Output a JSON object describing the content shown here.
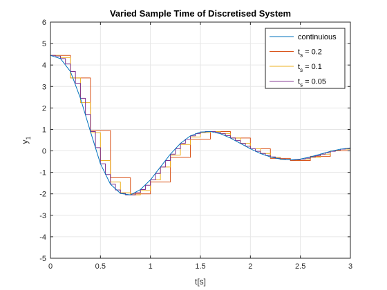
{
  "chart_data": {
    "type": "line",
    "title": "Varied Sample Time of Discretised System",
    "xlabel": "t[s]",
    "ylabel_main": "y",
    "ylabel_sub": "1",
    "xlim": [
      0,
      3
    ],
    "ylim": [
      -5,
      6
    ],
    "xticks": [
      0,
      0.5,
      1,
      1.5,
      2,
      2.5,
      3
    ],
    "xtick_labels": [
      "0",
      "0.5",
      "1",
      "1.5",
      "2",
      "2.5",
      "3"
    ],
    "yticks": [
      -5,
      -4,
      -3,
      -2,
      -1,
      0,
      1,
      2,
      3,
      4,
      5,
      6
    ],
    "ytick_labels": [
      "-5",
      "-4",
      "-3",
      "-2",
      "-1",
      "0",
      "1",
      "2",
      "3",
      "4",
      "5",
      "6"
    ],
    "grid": true,
    "legend_position": "top-right",
    "series": [
      {
        "name": "continuious",
        "style": "continuous",
        "color": "#0072BD",
        "x": [
          0,
          0.1,
          0.2,
          0.3,
          0.4,
          0.5,
          0.6,
          0.7,
          0.8,
          0.9,
          1.0,
          1.1,
          1.2,
          1.3,
          1.4,
          1.5,
          1.6,
          1.7,
          1.8,
          1.9,
          2.0,
          2.1,
          2.2,
          2.3,
          2.4,
          2.5,
          2.6,
          2.7,
          2.8,
          2.9,
          3.0
        ],
        "values": [
          4.45,
          4.3,
          3.7,
          2.45,
          0.9,
          -0.6,
          -1.55,
          -1.98,
          -2.05,
          -1.8,
          -1.35,
          -0.75,
          -0.15,
          0.35,
          0.7,
          0.88,
          0.9,
          0.8,
          0.6,
          0.35,
          0.1,
          -0.12,
          -0.28,
          -0.38,
          -0.42,
          -0.38,
          -0.28,
          -0.15,
          -0.02,
          0.08,
          0.14
        ]
      },
      {
        "name": "t",
        "name_sub": "s",
        "name_suffix": " = 0.2",
        "style": "step",
        "color": "#D95319",
        "x": [
          0,
          0.2,
          0.4,
          0.6,
          0.8,
          1.0,
          1.2,
          1.4,
          1.6,
          1.8,
          2.0,
          2.2,
          2.4,
          2.6,
          2.8,
          3.0
        ],
        "values": [
          4.45,
          3.4,
          0.95,
          -1.25,
          -2.0,
          -1.45,
          -0.3,
          0.55,
          0.9,
          0.6,
          0.1,
          -0.35,
          -0.45,
          -0.25,
          0.0,
          0.0
        ]
      },
      {
        "name": "t",
        "name_sub": "s",
        "name_suffix": " = 0.1",
        "style": "step",
        "color": "#EDB120",
        "x": [
          0,
          0.1,
          0.2,
          0.3,
          0.4,
          0.5,
          0.6,
          0.7,
          0.8,
          0.9,
          1.0,
          1.1,
          1.2,
          1.3,
          1.4,
          1.5,
          1.6,
          1.7,
          1.8,
          1.9,
          2.0,
          2.1,
          2.2,
          2.3,
          2.4,
          2.5,
          2.6,
          2.7,
          2.8,
          2.9,
          3.0
        ],
        "values": [
          4.45,
          4.35,
          3.4,
          2.25,
          0.85,
          -0.45,
          -1.45,
          -1.95,
          -2.05,
          -1.85,
          -1.35,
          -0.75,
          -0.2,
          0.3,
          0.65,
          0.85,
          0.9,
          0.8,
          0.6,
          0.35,
          0.1,
          -0.12,
          -0.3,
          -0.4,
          -0.42,
          -0.38,
          -0.3,
          -0.15,
          0.0,
          0.08,
          0.08
        ]
      },
      {
        "name": "t",
        "name_sub": "s",
        "name_suffix": " = 0.05",
        "style": "step",
        "color": "#7E2F8E",
        "x": [
          0,
          0.05,
          0.1,
          0.15,
          0.2,
          0.25,
          0.3,
          0.35,
          0.4,
          0.45,
          0.5,
          0.55,
          0.6,
          0.65,
          0.7,
          0.75,
          0.8,
          0.85,
          0.9,
          0.95,
          1.0,
          1.05,
          1.1,
          1.15,
          1.2,
          1.25,
          1.3,
          1.35,
          1.4,
          1.45,
          1.5,
          1.55,
          1.6,
          1.65,
          1.7,
          1.75,
          1.8,
          1.85,
          1.9,
          1.95,
          2.0,
          2.05,
          2.1,
          2.15,
          2.2,
          2.25,
          2.3,
          2.35,
          2.4,
          2.45,
          2.5,
          2.55,
          2.6,
          2.65,
          2.7,
          2.75,
          2.8,
          2.85,
          2.9,
          2.95,
          3.0
        ],
        "values": [
          4.45,
          4.42,
          4.3,
          4.05,
          3.7,
          3.15,
          2.45,
          1.7,
          0.9,
          0.15,
          -0.6,
          -1.1,
          -1.55,
          -1.82,
          -1.98,
          -2.05,
          -2.05,
          -1.95,
          -1.8,
          -1.6,
          -1.35,
          -1.05,
          -0.75,
          -0.45,
          -0.15,
          0.1,
          0.35,
          0.55,
          0.7,
          0.8,
          0.88,
          0.9,
          0.9,
          0.86,
          0.8,
          0.71,
          0.6,
          0.48,
          0.35,
          0.22,
          0.1,
          -0.02,
          -0.12,
          -0.21,
          -0.28,
          -0.34,
          -0.38,
          -0.41,
          -0.42,
          -0.41,
          -0.38,
          -0.34,
          -0.28,
          -0.22,
          -0.15,
          -0.08,
          -0.02,
          0.03,
          0.08,
          0.11,
          0.13
        ]
      }
    ]
  }
}
